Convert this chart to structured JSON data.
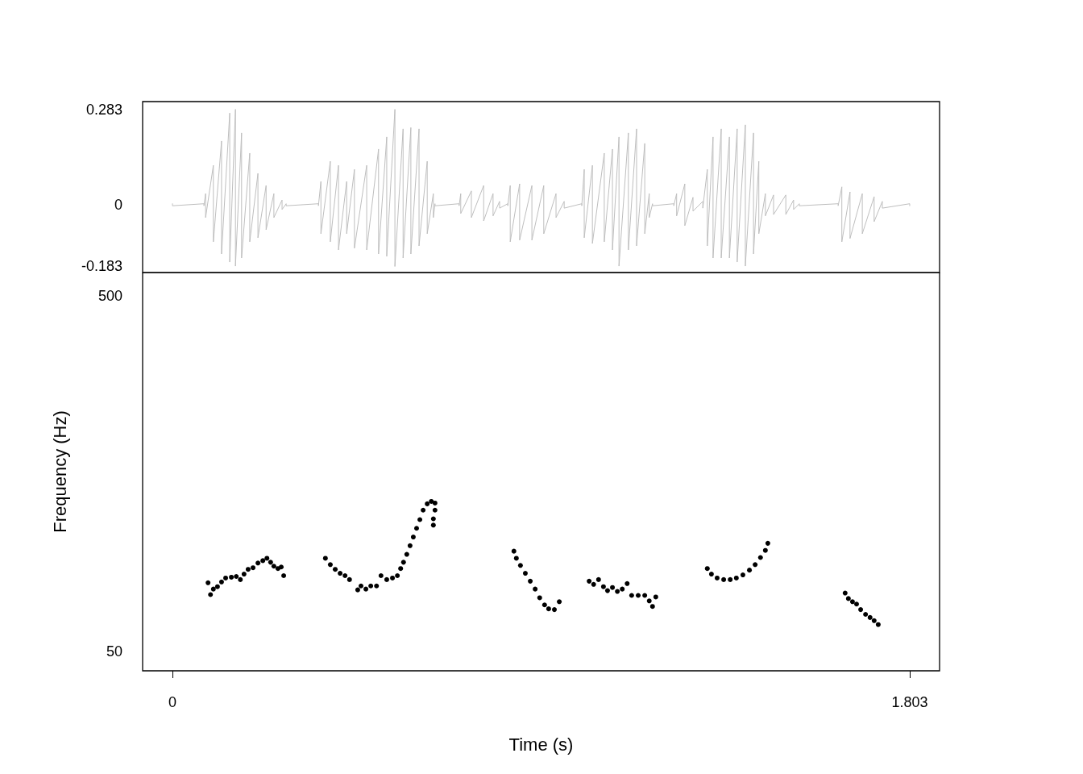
{
  "chart_data": [
    {
      "type": "line",
      "tick_labels": "y",
      "grid": false,
      "marker": "none",
      "line_style": "solid",
      "x": [
        0,
        0,
        0.077,
        0.077,
        0.081,
        0.081,
        0.1,
        0.1,
        0.12,
        0.12,
        0.14,
        0.14,
        0.154,
        0.154,
        0.169,
        0.169,
        0.189,
        0.189,
        0.209,
        0.209,
        0.229,
        0.229,
        0.248,
        0.248,
        0.268,
        0.268,
        0.278,
        0.278,
        0.357,
        0.357,
        0.363,
        0.363,
        0.386,
        0.386,
        0.406,
        0.406,
        0.426,
        0.426,
        0.445,
        0.445,
        0.475,
        0.475,
        0.504,
        0.504,
        0.524,
        0.524,
        0.544,
        0.544,
        0.564,
        0.564,
        0.583,
        0.583,
        0.603,
        0.603,
        0.623,
        0.623,
        0.638,
        0.638,
        0.642,
        0.642,
        0.701,
        0.701,
        0.705,
        0.705,
        0.731,
        0.731,
        0.761,
        0.761,
        0.784,
        0.784,
        0.8,
        0.8,
        0.82,
        0.82,
        0.826,
        0.826,
        0.849,
        0.849,
        0.879,
        0.879,
        0.908,
        0.908,
        0.938,
        0.938,
        0.958,
        0.958,
        1.001,
        1.001,
        1.007,
        1.007,
        1.027,
        1.027,
        1.056,
        1.056,
        1.076,
        1.076,
        1.092,
        1.092,
        1.115,
        1.115,
        1.135,
        1.135,
        1.155,
        1.155,
        1.166,
        1.166,
        1.174,
        1.174,
        1.226,
        1.226,
        1.233,
        1.233,
        1.253,
        1.253,
        1.273,
        1.273,
        1.297,
        1.297,
        1.308,
        1.308,
        1.322,
        1.322,
        1.342,
        1.342,
        1.362,
        1.362,
        1.381,
        1.381,
        1.401,
        1.401,
        1.421,
        1.421,
        1.434,
        1.434,
        1.45,
        1.45,
        1.47,
        1.47,
        1.5,
        1.5,
        1.519,
        1.519,
        1.533,
        1.533,
        1.628,
        1.628,
        1.637,
        1.637,
        1.657,
        1.657,
        1.687,
        1.687,
        1.716,
        1.716,
        1.736,
        1.736,
        1.803,
        1.803
      ],
      "series": [
        {
          "color": "#bebebe",
          "values": [
            0.003,
            -0.003,
            0.003,
            -0.003,
            0.033,
            -0.038,
            0.117,
            -0.11,
            0.189,
            -0.146,
            0.272,
            -0.17,
            0.283,
            -0.182,
            0.213,
            -0.158,
            0.153,
            -0.11,
            0.093,
            -0.098,
            0.057,
            -0.074,
            0.033,
            -0.038,
            0.014,
            -0.014,
            0.003,
            -0.003,
            0.003,
            -0.003,
            0.069,
            -0.086,
            0.129,
            -0.11,
            0.117,
            -0.134,
            0.069,
            -0.086,
            0.105,
            -0.129,
            0.117,
            -0.134,
            0.165,
            -0.146,
            0.201,
            -0.153,
            0.283,
            -0.183,
            0.225,
            -0.158,
            0.229,
            -0.146,
            0.225,
            -0.122,
            0.129,
            -0.086,
            0.033,
            -0.038,
            0.003,
            -0.003,
            0.003,
            -0.003,
            0.033,
            -0.026,
            0.041,
            -0.038,
            0.057,
            -0.048,
            0.033,
            -0.033,
            0.01,
            -0.01,
            0.003,
            -0.003,
            0.057,
            -0.11,
            0.062,
            -0.105,
            0.057,
            -0.105,
            0.057,
            -0.086,
            0.033,
            -0.038,
            0.01,
            -0.01,
            0.003,
            -0.003,
            0.105,
            -0.098,
            0.117,
            -0.115,
            0.153,
            -0.11,
            0.165,
            -0.134,
            0.201,
            -0.182,
            0.213,
            -0.134,
            0.225,
            -0.122,
            0.182,
            -0.086,
            0.033,
            -0.038,
            0.003,
            -0.003,
            0.003,
            -0.003,
            0.033,
            -0.033,
            0.062,
            -0.062,
            0.022,
            -0.019,
            0.01,
            -0.01,
            0.105,
            -0.122,
            0.201,
            -0.158,
            0.225,
            -0.158,
            0.201,
            -0.158,
            0.225,
            -0.17,
            0.237,
            -0.182,
            0.213,
            -0.146,
            0.129,
            -0.086,
            0.033,
            -0.033,
            0.029,
            -0.029,
            0.029,
            -0.029,
            0.014,
            -0.014,
            0.003,
            -0.003,
            0.003,
            -0.003,
            0.053,
            -0.11,
            0.038,
            -0.1,
            0.033,
            -0.086,
            0.024,
            -0.05,
            0.01,
            -0.01,
            0.003,
            -0.003
          ]
        }
      ],
      "xlim": [
        -0.073,
        1.876
      ],
      "ylim": [
        -0.201,
        0.306
      ],
      "yticks": [
        -0.183,
        0,
        0.283
      ]
    },
    {
      "type": "scatter",
      "grid": false,
      "marker": "circle",
      "xlabel": "Time (s)",
      "ylabel": "Frequency (Hz)",
      "x": [
        0.087,
        0.093,
        0.1,
        0.11,
        0.12,
        0.13,
        0.144,
        0.156,
        0.166,
        0.175,
        0.185,
        0.197,
        0.209,
        0.221,
        0.231,
        0.24,
        0.248,
        0.258,
        0.266,
        0.272,
        0.374,
        0.386,
        0.398,
        0.41,
        0.422,
        0.433,
        0.453,
        0.461,
        0.473,
        0.485,
        0.499,
        0.51,
        0.524,
        0.538,
        0.55,
        0.558,
        0.565,
        0.573,
        0.581,
        0.589,
        0.597,
        0.605,
        0.613,
        0.623,
        0.633,
        0.642,
        0.642,
        0.638,
        0.638,
        0.835,
        0.841,
        0.851,
        0.863,
        0.875,
        0.887,
        0.898,
        0.91,
        0.92,
        0.934,
        0.946,
        1.019,
        1.03,
        1.042,
        1.054,
        1.064,
        1.076,
        1.088,
        1.1,
        1.112,
        1.123,
        1.139,
        1.155,
        1.166,
        1.174,
        1.182,
        1.308,
        1.318,
        1.332,
        1.348,
        1.364,
        1.379,
        1.395,
        1.411,
        1.425,
        1.438,
        1.45,
        1.456,
        1.645,
        1.653,
        1.663,
        1.673,
        1.683,
        1.695,
        1.706,
        1.716,
        1.726
      ],
      "values": [
        137,
        122,
        129,
        132,
        138,
        143,
        144,
        145,
        141,
        148,
        154,
        156,
        162,
        165,
        168,
        163,
        158,
        155,
        157,
        146,
        168,
        160,
        154,
        149,
        146,
        141,
        128,
        133,
        129,
        133,
        133,
        146,
        141,
        143,
        146,
        155,
        163,
        173,
        184,
        195,
        206,
        217,
        229,
        237,
        240,
        238,
        229,
        218,
        210,
        177,
        168,
        159,
        149,
        139,
        129,
        118,
        109,
        104,
        103,
        113,
        139,
        135,
        141,
        132,
        127,
        131,
        126,
        129,
        136,
        121,
        121,
        121,
        114,
        107,
        119,
        155,
        148,
        143,
        141,
        141,
        143,
        147,
        153,
        160,
        169,
        178,
        187,
        124,
        117,
        113,
        110,
        103,
        97,
        93,
        89,
        84
      ],
      "color": "#000000",
      "xlim": [
        -0.073,
        1.876
      ],
      "xticks": [
        0,
        1.803
      ],
      "ylim": [
        25.5,
        530
      ],
      "yticks": [
        50,
        500
      ]
    }
  ]
}
